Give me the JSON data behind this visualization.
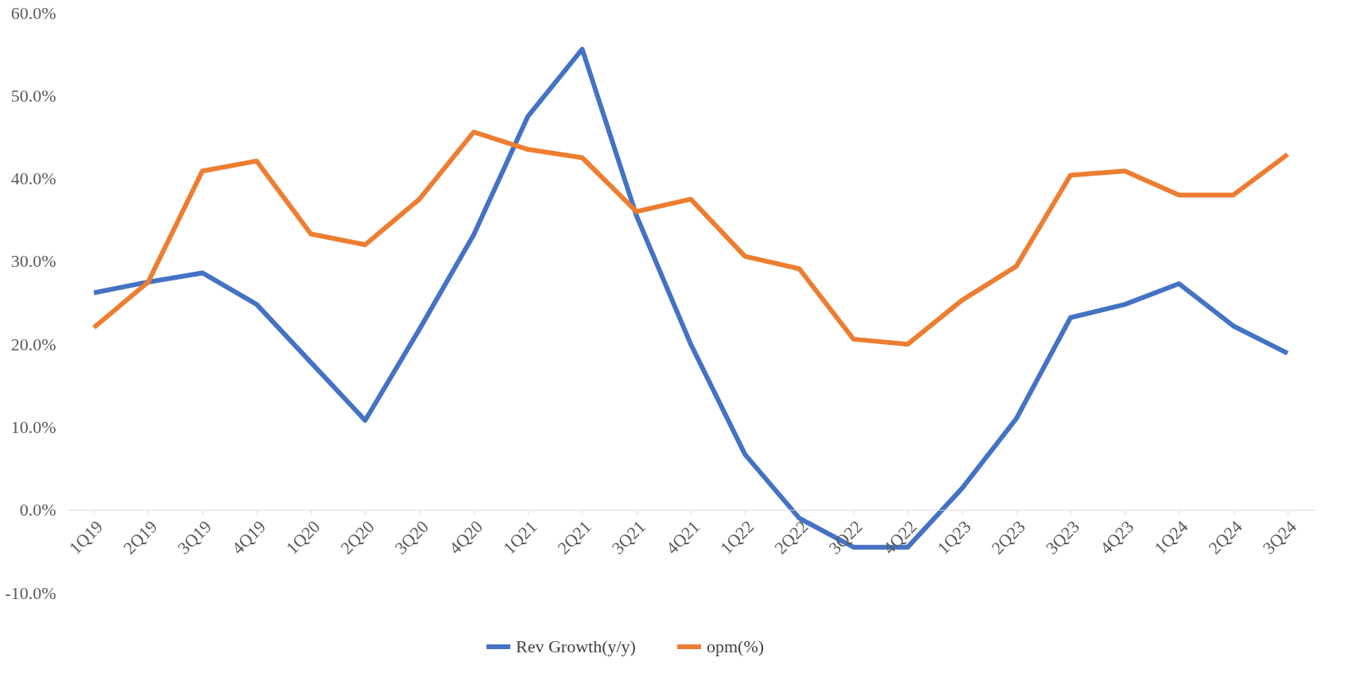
{
  "chart_data": {
    "type": "line",
    "categories": [
      "1Q19",
      "2Q19",
      "3Q19",
      "4Q19",
      "1Q20",
      "2Q20",
      "3Q20",
      "4Q20",
      "1Q21",
      "2Q21",
      "3Q21",
      "4Q21",
      "1Q22",
      "2Q22",
      "3Q22",
      "4Q22",
      "1Q23",
      "2Q23",
      "3Q23",
      "4Q23",
      "1Q24",
      "2Q24",
      "3Q24"
    ],
    "series": [
      {
        "name": "Rev Growth(y/y)",
        "color": "#4472c4",
        "values": [
          26.2,
          27.5,
          28.6,
          24.8,
          17.8,
          10.8,
          21.8,
          33.2,
          47.5,
          55.6,
          35.5,
          20.0,
          6.7,
          -1.0,
          -4.5,
          -4.5,
          2.6,
          11.0,
          23.2,
          24.8,
          27.3,
          22.2,
          18.9
        ]
      },
      {
        "name": "opm(%)",
        "color": "#ed7d31",
        "values": [
          22.0,
          27.5,
          40.9,
          42.1,
          33.3,
          32.0,
          37.5,
          45.6,
          43.5,
          42.5,
          36.0,
          37.5,
          30.6,
          29.1,
          20.6,
          20.0,
          25.3,
          29.4,
          40.4,
          40.9,
          38.0,
          38.0,
          42.9
        ]
      }
    ],
    "ylim": [
      -10,
      60
    ],
    "yticks": [
      {
        "value": -10,
        "label": "-10.0%"
      },
      {
        "value": 0,
        "label": "0.0%"
      },
      {
        "value": 10,
        "label": "10.0%"
      },
      {
        "value": 20,
        "label": "20.0%"
      },
      {
        "value": 30,
        "label": "30.0%"
      },
      {
        "value": 40,
        "label": "40.0%"
      },
      {
        "value": 50,
        "label": "50.0%"
      },
      {
        "value": 60,
        "label": "60.0%"
      }
    ],
    "grid": false,
    "legend": "bottom",
    "marker": "none",
    "line_style": "solid"
  }
}
